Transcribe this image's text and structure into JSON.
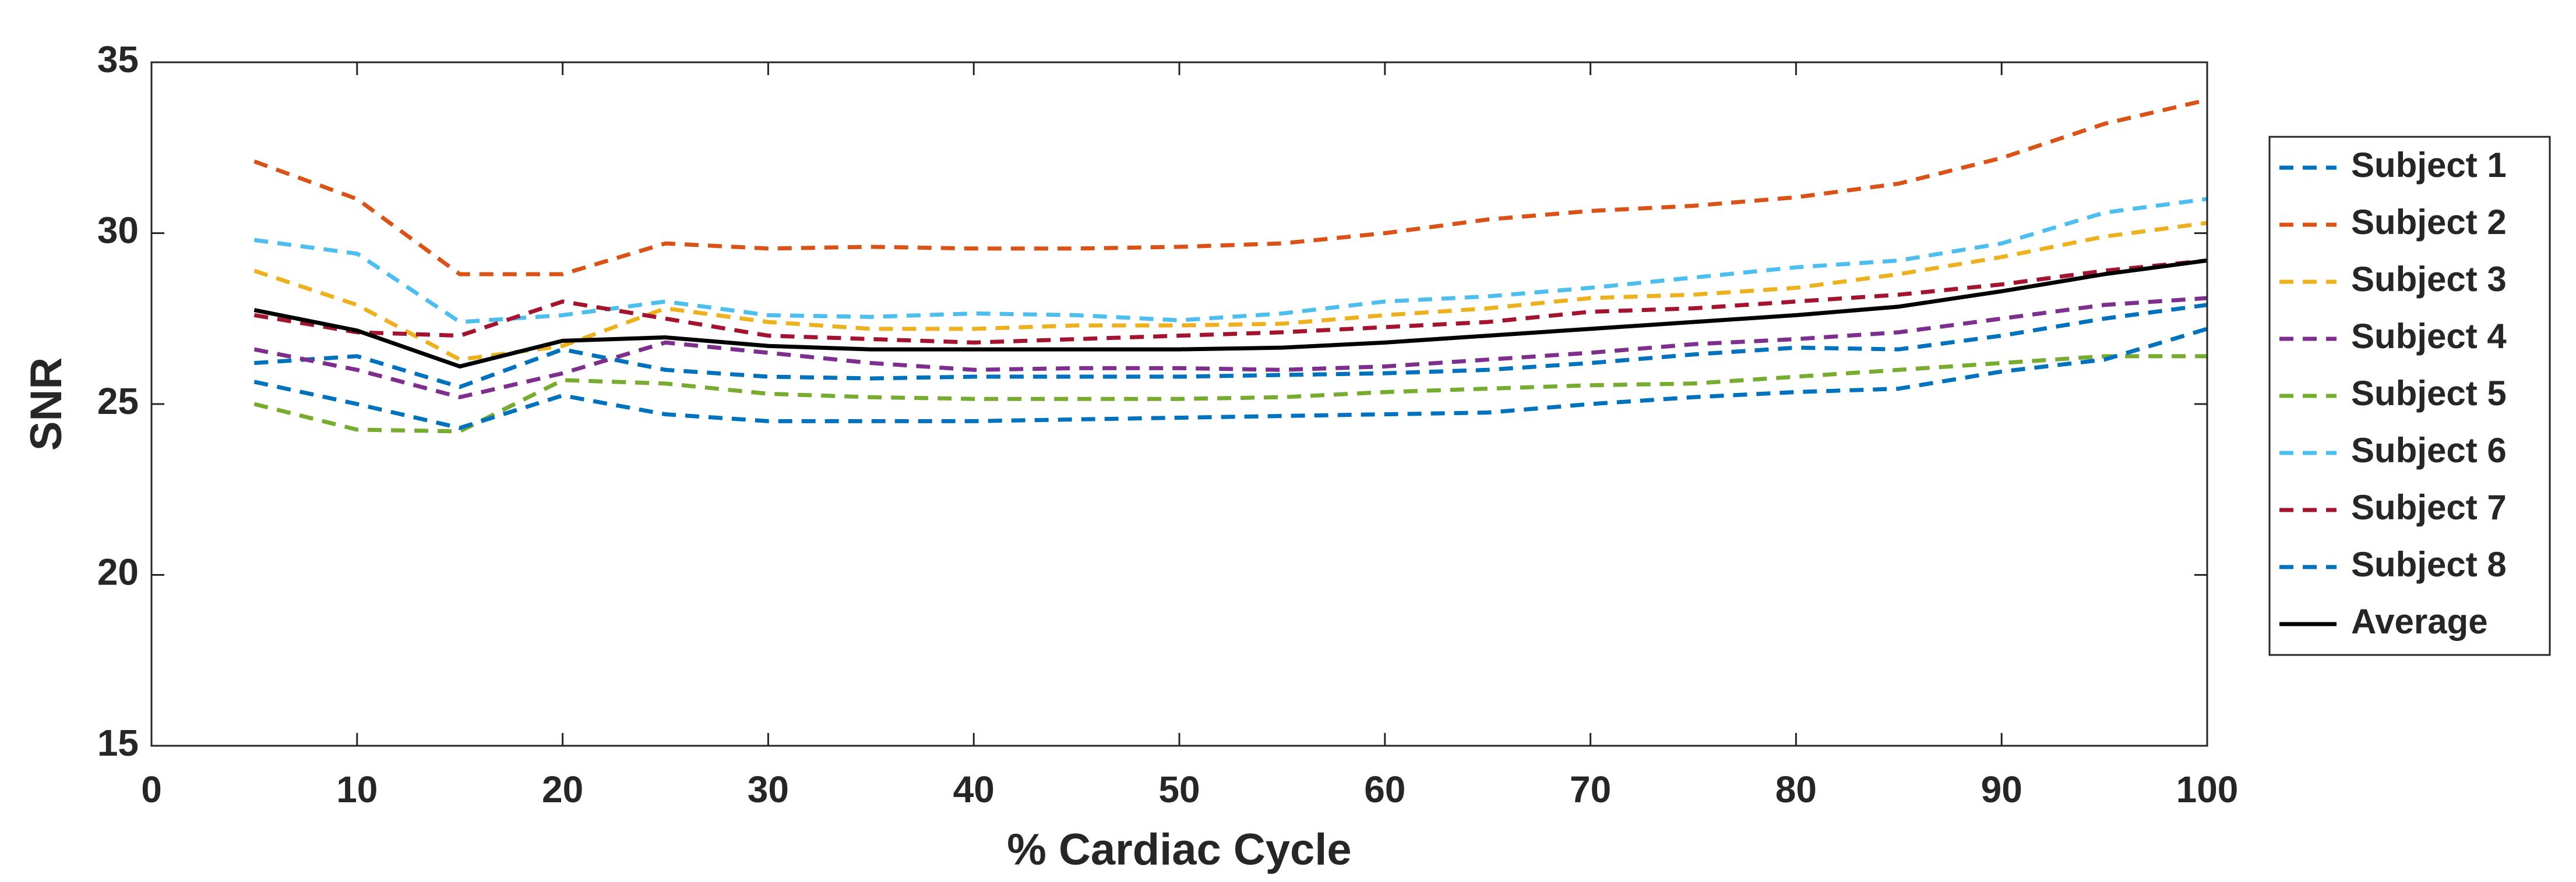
{
  "chart_data": {
    "type": "line",
    "xlabel": "% Cardiac Cycle",
    "ylabel": "SNR",
    "x": [
      5,
      10,
      15,
      20,
      25,
      30,
      35,
      40,
      45,
      50,
      55,
      60,
      65,
      70,
      75,
      80,
      85,
      90,
      95,
      100
    ],
    "xlim": [
      0,
      100
    ],
    "xticks": [
      0,
      10,
      20,
      30,
      40,
      50,
      60,
      70,
      80,
      90,
      100
    ],
    "ylim": [
      15,
      35
    ],
    "yticks": [
      15,
      20,
      25,
      30,
      35
    ],
    "legend": "outside-right",
    "series": [
      {
        "name": "Subject 1",
        "color": "#0072BD",
        "dashed": true,
        "values": [
          26.2,
          26.4,
          25.5,
          26.6,
          26.0,
          25.8,
          25.75,
          25.8,
          25.8,
          25.8,
          25.85,
          25.9,
          26.0,
          26.2,
          26.45,
          26.65,
          26.6,
          27.0,
          27.5,
          27.9
        ]
      },
      {
        "name": "Subject 2",
        "color": "#D95319",
        "dashed": true,
        "values": [
          32.1,
          31.0,
          28.8,
          28.8,
          29.7,
          29.55,
          29.6,
          29.55,
          29.55,
          29.6,
          29.7,
          30.0,
          30.4,
          30.65,
          30.8,
          31.05,
          31.45,
          32.2,
          33.2,
          33.9
        ]
      },
      {
        "name": "Subject 3",
        "color": "#EDB120",
        "dashed": true,
        "values": [
          28.9,
          27.9,
          26.3,
          26.7,
          27.8,
          27.4,
          27.2,
          27.2,
          27.3,
          27.3,
          27.35,
          27.6,
          27.8,
          28.1,
          28.2,
          28.4,
          28.8,
          29.3,
          29.9,
          30.3
        ]
      },
      {
        "name": "Subject 4",
        "color": "#7E2F8E",
        "dashed": true,
        "values": [
          26.6,
          26.0,
          25.2,
          25.9,
          26.8,
          26.5,
          26.2,
          26.0,
          26.05,
          26.05,
          26.0,
          26.1,
          26.3,
          26.5,
          26.75,
          26.9,
          27.1,
          27.5,
          27.9,
          28.1
        ]
      },
      {
        "name": "Subject 5",
        "color": "#77AC30",
        "dashed": true,
        "values": [
          25.0,
          24.25,
          24.2,
          25.7,
          25.6,
          25.3,
          25.2,
          25.15,
          25.15,
          25.15,
          25.2,
          25.35,
          25.45,
          25.55,
          25.6,
          25.8,
          26.0,
          26.2,
          26.4,
          26.4
        ]
      },
      {
        "name": "Subject 6",
        "color": "#4DBEEE",
        "dashed": true,
        "values": [
          29.8,
          29.4,
          27.4,
          27.6,
          28.0,
          27.6,
          27.55,
          27.65,
          27.6,
          27.45,
          27.65,
          28.0,
          28.15,
          28.4,
          28.7,
          29.0,
          29.2,
          29.7,
          30.6,
          31.0
        ]
      },
      {
        "name": "Subject 7",
        "color": "#A2142F",
        "dashed": true,
        "values": [
          27.6,
          27.1,
          27.0,
          28.0,
          27.5,
          27.0,
          26.9,
          26.8,
          26.9,
          27.0,
          27.1,
          27.25,
          27.4,
          27.7,
          27.8,
          28.0,
          28.2,
          28.5,
          28.9,
          29.2
        ]
      },
      {
        "name": "Subject 8",
        "color": "#0072BD",
        "dashed": true,
        "values": [
          25.65,
          25.0,
          24.3,
          25.25,
          24.7,
          24.5,
          24.5,
          24.5,
          24.55,
          24.6,
          24.65,
          24.7,
          24.75,
          25.0,
          25.2,
          25.35,
          25.45,
          25.95,
          26.3,
          27.2
        ]
      },
      {
        "name": "Average",
        "color": "#000000",
        "dashed": false,
        "values": [
          27.75,
          27.15,
          26.1,
          26.85,
          26.95,
          26.7,
          26.6,
          26.6,
          26.6,
          26.6,
          26.65,
          26.8,
          27.0,
          27.2,
          27.4,
          27.6,
          27.85,
          28.3,
          28.8,
          29.2
        ]
      }
    ]
  }
}
